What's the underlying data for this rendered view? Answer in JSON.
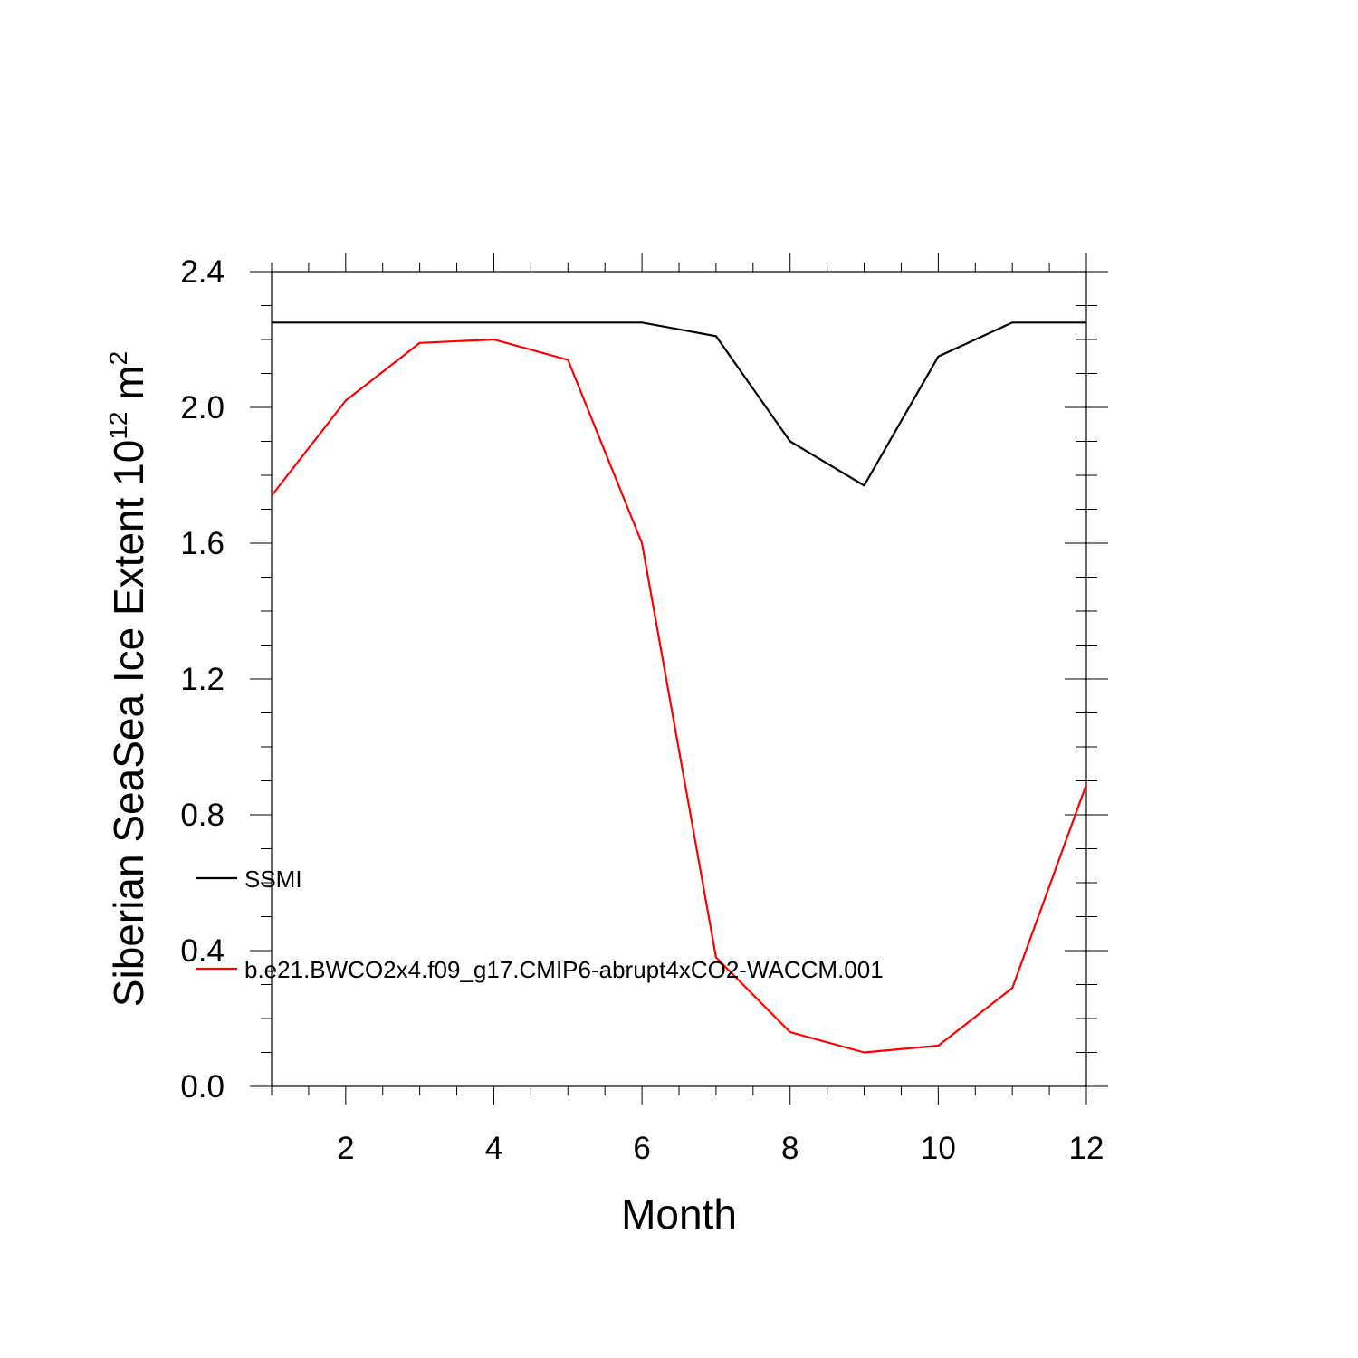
{
  "chart_data": {
    "type": "line",
    "xlabel": "Month",
    "ylabel_main": "Siberian SeaSea Ice Extent 10",
    "ylabel_sup": "12",
    "ylabel_unit": " m",
    "ylabel_unit_sup": "2",
    "xlim": [
      1,
      12
    ],
    "ylim": [
      0.0,
      2.4
    ],
    "x_ticks": [
      2,
      4,
      6,
      8,
      10,
      12
    ],
    "x_tick_labels": [
      "2",
      "4",
      "6",
      "8",
      "10",
      "12"
    ],
    "y_ticks": [
      0.0,
      0.4,
      0.8,
      1.2,
      1.6,
      2.0,
      2.4
    ],
    "y_tick_labels": [
      "0.0",
      "0.4",
      "0.8",
      "1.2",
      "1.6",
      "2.0",
      "2.4"
    ],
    "x": [
      1,
      2,
      3,
      4,
      5,
      6,
      7,
      8,
      9,
      10,
      11,
      12
    ],
    "series": [
      {
        "name": "SSMI",
        "color": "#000000",
        "values": [
          2.25,
          2.25,
          2.25,
          2.25,
          2.25,
          2.25,
          2.21,
          1.9,
          1.77,
          2.15,
          2.25,
          2.25
        ]
      },
      {
        "name": "b.e21.BWCO2x4.f09_g17.CMIP6-abrupt4xCO2-WACCM.001",
        "color": "#ff0000",
        "values": [
          1.74,
          2.02,
          2.19,
          2.2,
          2.14,
          1.6,
          0.38,
          0.16,
          0.1,
          0.12,
          0.29,
          0.89
        ]
      }
    ],
    "legend_position": "lower-left",
    "grid": false
  }
}
